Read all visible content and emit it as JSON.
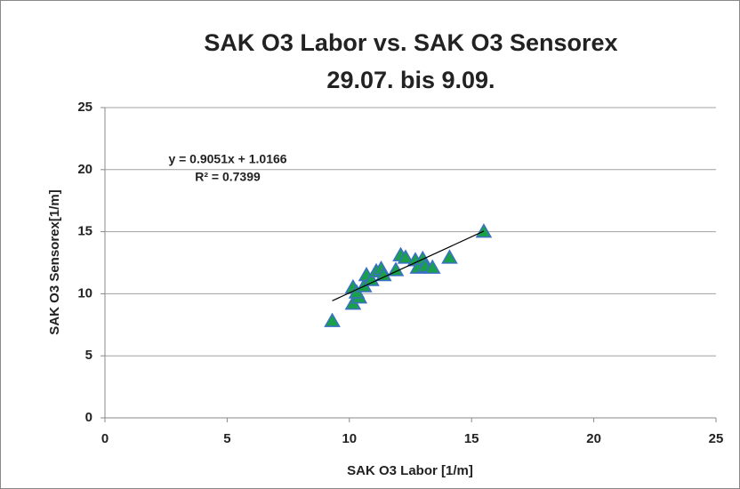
{
  "chart_data": {
    "type": "scatter",
    "title": "SAK O3 Labor vs. SAK O3 Sensorex",
    "subtitle": "29.07. bis 9.09.",
    "x_label": "SAK O3 Labor [1/m]",
    "y_label": "SAK O3 Sensorex[1/m]",
    "series": [
      {
        "name": "SAK O3 Sensorex",
        "color": "#1aa04a",
        "edge_color": "#3a6fc4",
        "x": [
          9.3,
          10.15,
          10.4,
          10.15,
          10.3,
          10.6,
          10.7,
          10.9,
          11.1,
          11.3,
          11.4,
          11.9,
          12.1,
          12.3,
          12.7,
          12.8,
          13.0,
          13.1,
          13.4,
          14.1,
          15.5
        ],
        "values": [
          7.8,
          9.2,
          9.7,
          10.5,
          10.1,
          10.6,
          11.5,
          11.1,
          11.8,
          12.0,
          11.5,
          11.9,
          13.1,
          12.9,
          12.7,
          12.1,
          12.8,
          12.2,
          12.1,
          12.9,
          15.0
        ]
      }
    ],
    "trendline": {
      "equation": "y = 0.9051x + 1.0166",
      "r2": "R² = 0.7399",
      "slope": 0.9051,
      "intercept": 1.0166
    },
    "xlim": [
      0,
      25
    ],
    "xticks": [
      0,
      5,
      10,
      15,
      20,
      25
    ],
    "ylim": [
      0,
      25
    ],
    "yticks": [
      0,
      5,
      10,
      15,
      20,
      25
    ],
    "grid": true
  }
}
